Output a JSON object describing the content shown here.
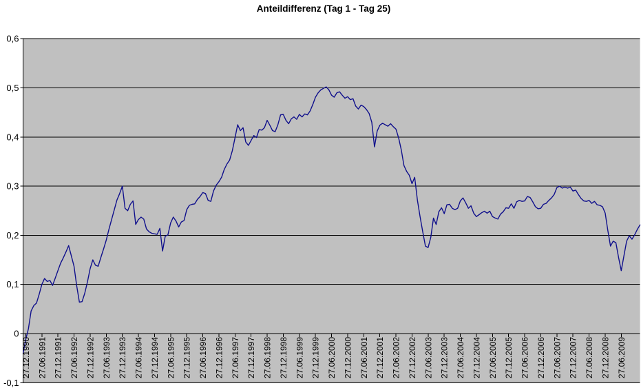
{
  "chart_data": {
    "type": "line",
    "title": "Anteildifferenz (Tag 1 - Tag 25)",
    "legend": "none",
    "grid": "horizontal",
    "plot_background": "#c0c0c0",
    "gridline_color": "#000000",
    "axis_color": "#000000",
    "y_axis": {
      "min": -0.1,
      "max": 0.6,
      "tick_values": [
        0.6,
        0.5,
        0.4,
        0.3,
        0.2,
        0.1,
        0,
        -0.1
      ],
      "tick_labels": [
        "0,6",
        "0,5",
        "0,4",
        "0,3",
        "0,2",
        "0,1",
        "0",
        "-0,1"
      ],
      "decimal_style": "comma"
    },
    "x_axis": {
      "tick_labels": [
        "27.12.1990",
        "27.06.1991",
        "27.12.1991",
        "27.06.1992",
        "27.12.1992",
        "27.06.1993",
        "27.12.1993",
        "27.06.1994",
        "27.12.1994",
        "27.06.1995",
        "27.12.1995",
        "27.06.1996",
        "27.12.1996",
        "27.06.1997",
        "27.12.1997",
        "27.06.1998",
        "27.12.1998",
        "27.06.1999",
        "27.12.1999",
        "27.06.2000",
        "27.12.2000",
        "27.06.2001",
        "27.12.2001",
        "27.06.2002",
        "27.12.2002",
        "27.06.2003",
        "27.12.2003",
        "27.06.2004",
        "27.12.2004",
        "27.06.2005",
        "27.12.2005",
        "27.06.2006",
        "27.12.2006",
        "27.06.2007",
        "27.12.2007",
        "27.06.2008",
        "27.12.2008",
        "27.06.2009"
      ],
      "label_rotation_deg": 90,
      "first_label_point_index": 1,
      "label_every_n_points": 6
    },
    "series": [
      {
        "name": "Anteildifferenz (Tag 1 - Tag 25)",
        "color": "#10108c",
        "interval": "monthly",
        "values": [
          -0.04,
          -0.012,
          0.01,
          0.046,
          0.057,
          0.062,
          0.08,
          0.1,
          0.112,
          0.106,
          0.108,
          0.098,
          0.113,
          0.128,
          0.143,
          0.154,
          0.166,
          0.179,
          0.158,
          0.137,
          0.097,
          0.064,
          0.065,
          0.082,
          0.105,
          0.132,
          0.15,
          0.139,
          0.137,
          0.155,
          0.172,
          0.19,
          0.212,
          0.232,
          0.252,
          0.272,
          0.285,
          0.3,
          0.255,
          0.25,
          0.263,
          0.27,
          0.222,
          0.232,
          0.237,
          0.233,
          0.213,
          0.207,
          0.204,
          0.203,
          0.202,
          0.214,
          0.168,
          0.198,
          0.201,
          0.225,
          0.237,
          0.229,
          0.217,
          0.227,
          0.23,
          0.252,
          0.261,
          0.263,
          0.264,
          0.273,
          0.279,
          0.287,
          0.285,
          0.271,
          0.269,
          0.29,
          0.302,
          0.309,
          0.318,
          0.334,
          0.345,
          0.353,
          0.372,
          0.398,
          0.425,
          0.413,
          0.419,
          0.39,
          0.383,
          0.393,
          0.403,
          0.399,
          0.415,
          0.414,
          0.419,
          0.434,
          0.424,
          0.413,
          0.411,
          0.425,
          0.445,
          0.446,
          0.434,
          0.427,
          0.437,
          0.441,
          0.436,
          0.446,
          0.441,
          0.447,
          0.445,
          0.453,
          0.466,
          0.481,
          0.49,
          0.496,
          0.499,
          0.502,
          0.496,
          0.485,
          0.481,
          0.49,
          0.492,
          0.485,
          0.479,
          0.482,
          0.476,
          0.478,
          0.463,
          0.457,
          0.465,
          0.462,
          0.456,
          0.448,
          0.43,
          0.38,
          0.412,
          0.424,
          0.428,
          0.425,
          0.422,
          0.427,
          0.421,
          0.416,
          0.398,
          0.374,
          0.342,
          0.33,
          0.322,
          0.305,
          0.318,
          0.272,
          0.238,
          0.207,
          0.178,
          0.175,
          0.196,
          0.235,
          0.222,
          0.248,
          0.256,
          0.244,
          0.262,
          0.263,
          0.255,
          0.252,
          0.255,
          0.27,
          0.276,
          0.266,
          0.255,
          0.26,
          0.245,
          0.238,
          0.242,
          0.246,
          0.249,
          0.245,
          0.249,
          0.238,
          0.235,
          0.233,
          0.243,
          0.248,
          0.256,
          0.255,
          0.264,
          0.255,
          0.268,
          0.271,
          0.269,
          0.27,
          0.279,
          0.277,
          0.268,
          0.258,
          0.254,
          0.255,
          0.263,
          0.265,
          0.271,
          0.276,
          0.283,
          0.297,
          0.3,
          0.296,
          0.298,
          0.296,
          0.298,
          0.29,
          0.292,
          0.283,
          0.275,
          0.27,
          0.269,
          0.271,
          0.265,
          0.269,
          0.262,
          0.261,
          0.258,
          0.245,
          0.21,
          0.178,
          0.188,
          0.185,
          0.155,
          0.128,
          0.158,
          0.188,
          0.199,
          0.192,
          0.201,
          0.212,
          0.221
        ]
      }
    ]
  }
}
